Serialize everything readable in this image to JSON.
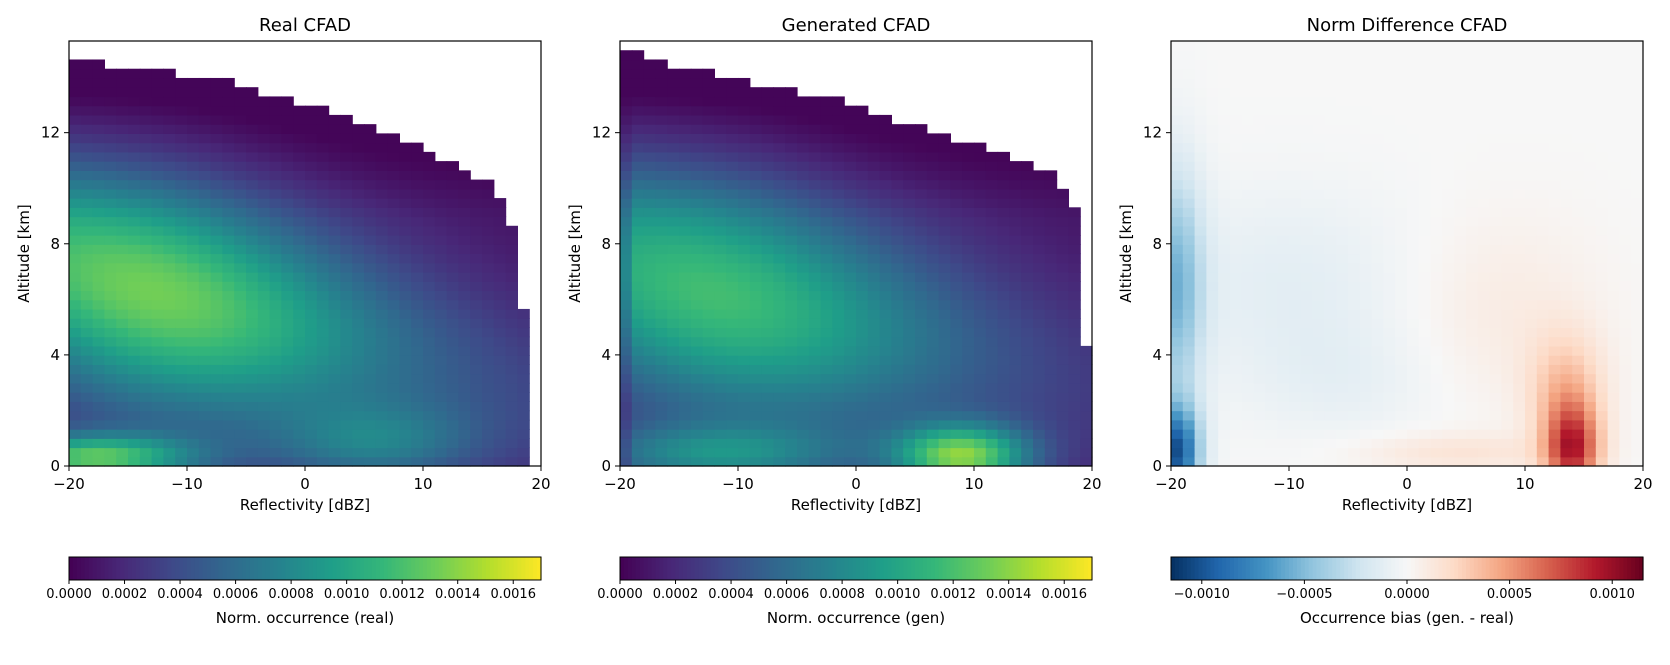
{
  "chart_data": [
    {
      "type": "heatmap",
      "title": "Real CFAD",
      "xlabel": "Reflectivity [dBZ]",
      "ylabel": "Altitude [km]",
      "xlim": [
        -20,
        20
      ],
      "ylim": [
        0,
        15.3
      ],
      "xticks": [
        "−20",
        "−10",
        "0",
        "10",
        "20"
      ],
      "xtick_values": [
        -20,
        -10,
        0,
        10,
        20
      ],
      "yticks": [
        "0",
        "4",
        "8",
        "12"
      ],
      "ytick_values": [
        0,
        4,
        8,
        12
      ],
      "colormap": "viridis",
      "colorbar": {
        "label": "Norm. occurrence (real)",
        "range": [
          0,
          0.0017
        ],
        "ticks": [
          "0.0000",
          "0.0002",
          "0.0004",
          "0.0006",
          "0.0008",
          "0.0010",
          "0.0012",
          "0.0014",
          "0.0016"
        ],
        "tick_values": [
          0,
          0.0002,
          0.0004,
          0.0006,
          0.0008,
          0.001,
          0.0012,
          0.0014,
          0.0016
        ]
      },
      "top_edge_km": [
        [
          -20,
          14.8
        ],
        [
          -18,
          14.6
        ],
        [
          -16,
          14.3
        ],
        [
          -10,
          14.1
        ],
        [
          -7,
          13.9
        ],
        [
          -5,
          13.6
        ],
        [
          -3,
          13.3
        ],
        [
          0,
          13.1
        ],
        [
          2,
          12.8
        ],
        [
          4,
          12.5
        ],
        [
          6,
          12.2
        ],
        [
          8,
          11.9
        ],
        [
          10,
          11.4
        ],
        [
          12,
          11.0
        ],
        [
          14,
          10.6
        ],
        [
          15.5,
          10.2
        ],
        [
          16.5,
          9.6
        ],
        [
          17.5,
          8.6
        ],
        [
          18.5,
          5.8
        ],
        [
          19,
          4.2
        ]
      ],
      "peak_value": 0.0016,
      "peak_location": {
        "reflectivity_dbz": -19,
        "altitude_km": 0.3
      }
    },
    {
      "type": "heatmap",
      "title": "Generated CFAD",
      "xlabel": "Reflectivity [dBZ]",
      "ylabel": "Altitude [km]",
      "xlim": [
        -20,
        20
      ],
      "ylim": [
        0,
        15.3
      ],
      "xticks": [
        "−20",
        "−10",
        "0",
        "10",
        "20"
      ],
      "xtick_values": [
        -20,
        -10,
        0,
        10,
        20
      ],
      "yticks": [
        "0",
        "4",
        "8",
        "12"
      ],
      "ytick_values": [
        0,
        4,
        8,
        12
      ],
      "colormap": "viridis",
      "colorbar": {
        "label": "Norm. occurrence (gen)",
        "range": [
          0,
          0.0017
        ],
        "ticks": [
          "0.0000",
          "0.0002",
          "0.0004",
          "0.0006",
          "0.0008",
          "0.0010",
          "0.0012",
          "0.0014",
          "0.0016"
        ],
        "tick_values": [
          0,
          0.0002,
          0.0004,
          0.0006,
          0.0008,
          0.001,
          0.0012,
          0.0014,
          0.0016
        ]
      },
      "top_edge_km": [
        [
          -20,
          15.0
        ],
        [
          -15,
          14.4
        ],
        [
          -10,
          13.9
        ],
        [
          -6,
          13.6
        ],
        [
          -3,
          13.3
        ],
        [
          0,
          13.0
        ],
        [
          2,
          12.6
        ],
        [
          4,
          12.3
        ],
        [
          7,
          12.0
        ],
        [
          10,
          11.6
        ],
        [
          12,
          11.3
        ],
        [
          15,
          10.9
        ],
        [
          17,
          10.4
        ],
        [
          18.5,
          9.4
        ],
        [
          19.5,
          4.3
        ]
      ],
      "peak_value": 0.0016,
      "peak_location": {
        "reflectivity_dbz": 9,
        "altitude_km": 0.2
      }
    },
    {
      "type": "heatmap",
      "title": "Norm Difference CFAD",
      "xlabel": "Reflectivity [dBZ]",
      "ylabel": "Altitude [km]",
      "xlim": [
        -20,
        20
      ],
      "ylim": [
        0,
        15.3
      ],
      "xticks": [
        "−20",
        "−10",
        "0",
        "10",
        "20"
      ],
      "xtick_values": [
        -20,
        -10,
        0,
        10,
        20
      ],
      "yticks": [
        "0",
        "4",
        "8",
        "12"
      ],
      "ytick_values": [
        0,
        4,
        8,
        12
      ],
      "colormap": "RdBu_r",
      "colorbar": {
        "label": "Occurrence bias (gen. - real)",
        "range": [
          -0.00115,
          0.00115
        ],
        "ticks": [
          "−0.0010",
          "−0.0005",
          "0.0000",
          "0.0005",
          "0.0010"
        ],
        "tick_values": [
          -0.001,
          -0.0005,
          0,
          0.0005,
          0.001
        ]
      },
      "features": [
        {
          "sign": "negative",
          "reflectivity_dbz": -19,
          "altitude_km": 0.5,
          "value": -0.00095
        },
        {
          "sign": "positive",
          "reflectivity_dbz": 14,
          "altitude_km": 0.6,
          "value": 0.0008
        },
        {
          "sign": "positive",
          "reflectivity_dbz": 8,
          "altitude_km": 5.5,
          "value": 0.0001
        },
        {
          "sign": "negative",
          "reflectivity_dbz": -10,
          "altitude_km": 6.5,
          "value": -0.00012
        }
      ]
    }
  ]
}
